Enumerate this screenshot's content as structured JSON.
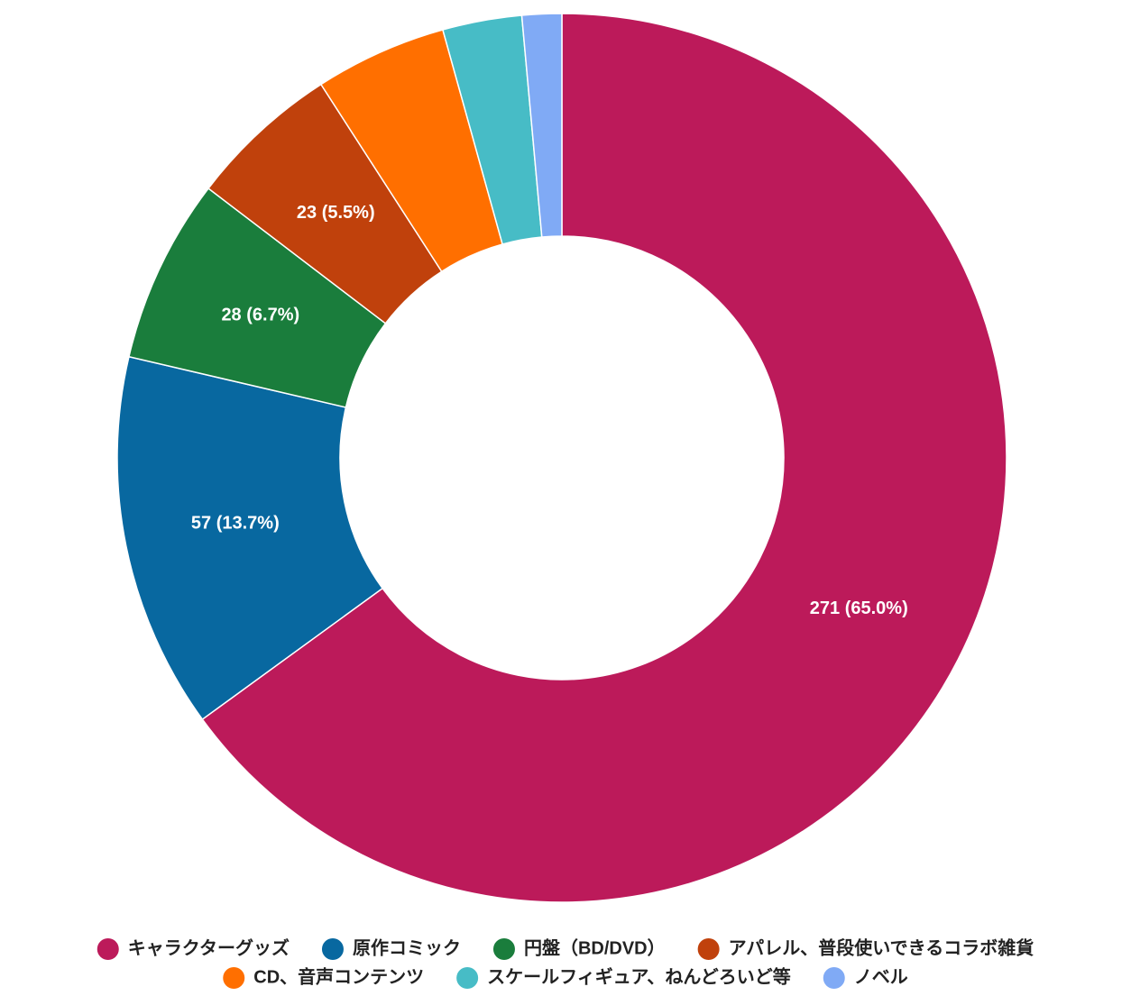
{
  "chart_data": {
    "type": "donut",
    "categories": [
      "キャラクターグッズ",
      "原作コミック",
      "円盤（BD/DVD）",
      "アパレル、普段使いできるコラボ雑貨",
      "CD、音声コンテンツ",
      "スケールフィギュア、ねんどろいど等",
      "ノベル"
    ],
    "values": [
      271,
      57,
      28,
      23,
      20,
      12,
      6
    ],
    "value_labels": [
      "271 (65.0%)",
      "57 (13.7%)",
      "28 (6.7%)",
      "23 (5.5%)",
      null,
      null,
      null
    ],
    "colors": [
      "#bc1a5a",
      "#0868a0",
      "#1a7d3c",
      "#c0410c",
      "#ff6f00",
      "#47bcc6",
      "#80aaf5"
    ],
    "legend": "bottom"
  }
}
